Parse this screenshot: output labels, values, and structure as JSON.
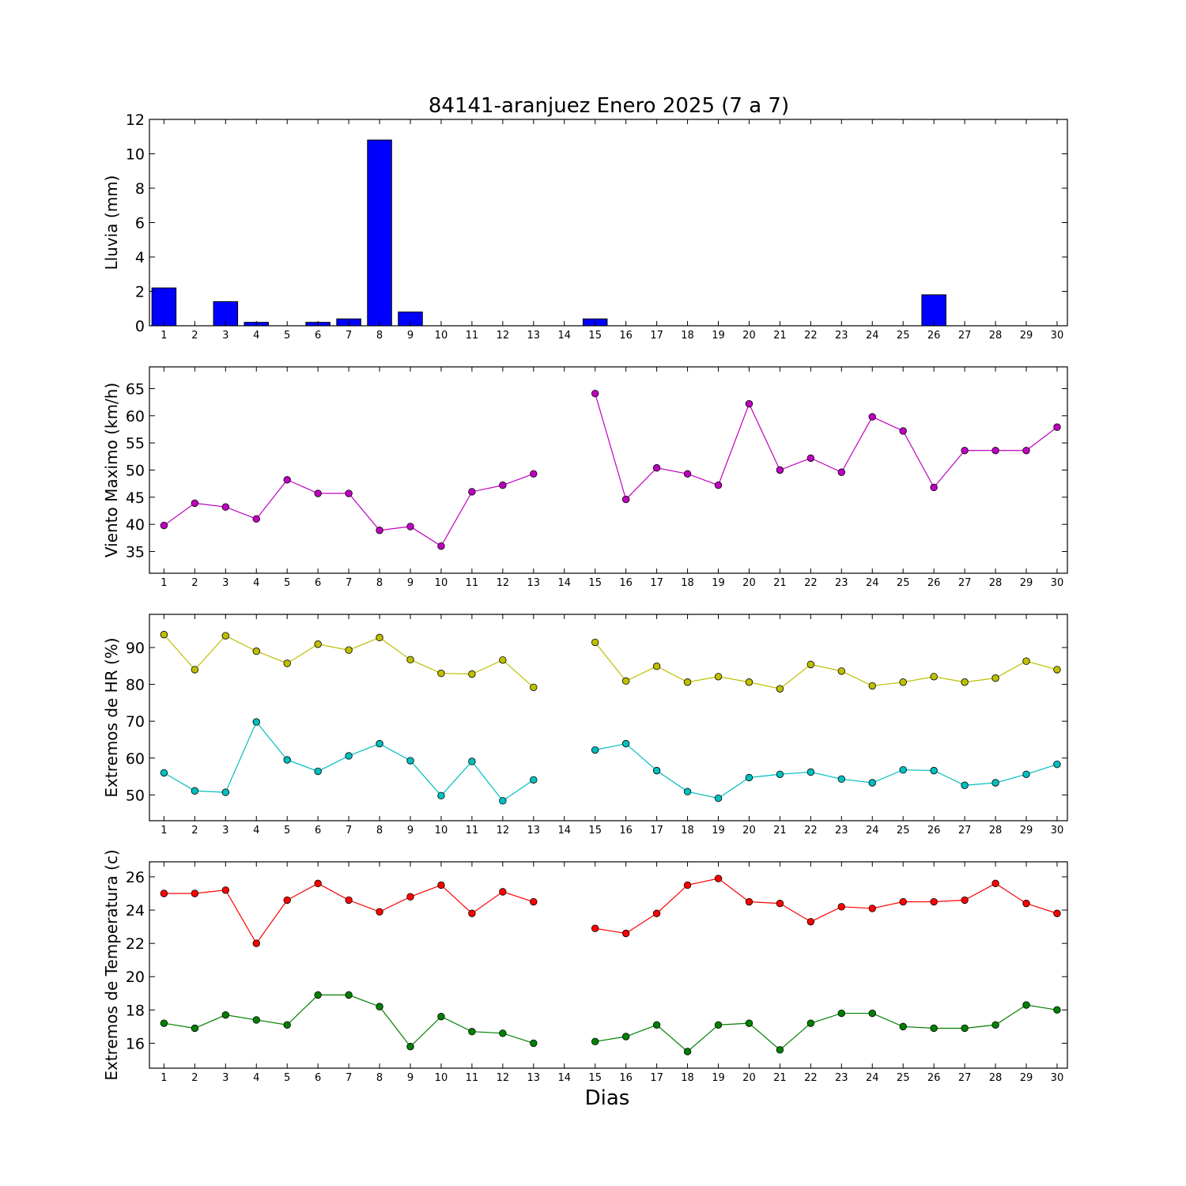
{
  "chart_data": [
    {
      "type": "bar",
      "title": "84141-aranjuez Enero 2025  (7 a 7)",
      "ylabel": "Lluvia (mm)",
      "xlabel": "",
      "ylim": [
        0,
        12
      ],
      "yticks": [
        0,
        2,
        4,
        6,
        8,
        10,
        12
      ],
      "categories": [
        "1",
        "2",
        "3",
        "4",
        "5",
        "6",
        "7",
        "8",
        "9",
        "10",
        "11",
        "12",
        "13",
        "14",
        "15",
        "16",
        "17",
        "18",
        "19",
        "20",
        "21",
        "22",
        "23",
        "24",
        "25",
        "26",
        "27",
        "28",
        "29",
        "30"
      ],
      "series": [
        {
          "color": "#0000ff",
          "values": [
            2.2,
            0,
            1.4,
            0.2,
            0,
            0.2,
            0.4,
            10.8,
            0.8,
            0,
            0,
            0,
            0,
            0,
            0.4,
            0,
            0,
            0,
            0,
            0,
            0,
            0,
            0,
            0,
            0,
            1.8,
            0,
            0,
            0,
            0
          ]
        }
      ]
    },
    {
      "type": "line",
      "title": "",
      "ylabel": "Viento Maximo (km/h)",
      "xlabel": "",
      "ylim": [
        31,
        69
      ],
      "yticks": [
        35,
        40,
        45,
        50,
        55,
        60,
        65
      ],
      "categories": [
        "1",
        "2",
        "3",
        "4",
        "5",
        "6",
        "7",
        "8",
        "9",
        "10",
        "11",
        "12",
        "13",
        "14",
        "15",
        "16",
        "17",
        "18",
        "19",
        "20",
        "21",
        "22",
        "23",
        "24",
        "25",
        "26",
        "27",
        "28",
        "29",
        "30"
      ],
      "series": [
        {
          "color": "#bf00bf",
          "values": [
            39.8,
            43.9,
            43.2,
            41.0,
            48.2,
            45.7,
            45.7,
            38.9,
            39.6,
            36.0,
            46.0,
            47.2,
            49.3,
            null,
            64.1,
            44.6,
            50.4,
            49.3,
            47.2,
            62.2,
            50.0,
            52.2,
            49.6,
            59.8,
            57.2,
            46.8,
            53.6,
            53.6,
            53.6,
            57.9
          ]
        }
      ]
    },
    {
      "type": "line",
      "title": "",
      "ylabel": "Extremos de HR (%)",
      "xlabel": "",
      "ylim": [
        43,
        99
      ],
      "yticks": [
        50,
        60,
        70,
        80,
        90
      ],
      "categories": [
        "1",
        "2",
        "3",
        "4",
        "5",
        "6",
        "7",
        "8",
        "9",
        "10",
        "11",
        "12",
        "13",
        "14",
        "15",
        "16",
        "17",
        "18",
        "19",
        "20",
        "21",
        "22",
        "23",
        "24",
        "25",
        "26",
        "27",
        "28",
        "29",
        "30"
      ],
      "series": [
        {
          "color": "#bfbf00",
          "values": [
            93.5,
            84.0,
            93.2,
            89.0,
            85.7,
            90.9,
            89.3,
            92.7,
            86.7,
            83.0,
            82.8,
            86.6,
            79.2,
            null,
            91.4,
            80.9,
            84.9,
            80.6,
            82.1,
            80.6,
            78.8,
            85.4,
            83.6,
            79.6,
            80.6,
            82.1,
            80.6,
            81.7,
            86.3,
            84.0
          ]
        },
        {
          "color": "#00bfbf",
          "values": [
            56.0,
            51.1,
            50.7,
            69.8,
            59.5,
            56.4,
            60.6,
            63.9,
            59.3,
            49.8,
            59.1,
            48.4,
            54.1,
            null,
            62.2,
            63.9,
            56.6,
            50.9,
            49.1,
            54.7,
            55.6,
            56.2,
            54.3,
            53.3,
            56.8,
            56.6,
            52.6,
            53.3,
            55.6,
            58.3
          ]
        }
      ]
    },
    {
      "type": "line",
      "title": "",
      "ylabel": "Extremos de Temperatura (c)",
      "xlabel": "Dias",
      "ylim": [
        14.5,
        26.9
      ],
      "yticks": [
        16,
        18,
        20,
        22,
        24,
        26
      ],
      "categories": [
        "1",
        "2",
        "3",
        "4",
        "5",
        "6",
        "7",
        "8",
        "9",
        "10",
        "11",
        "12",
        "13",
        "14",
        "15",
        "16",
        "17",
        "18",
        "19",
        "20",
        "21",
        "22",
        "23",
        "24",
        "25",
        "26",
        "27",
        "28",
        "29",
        "30"
      ],
      "series": [
        {
          "color": "#ff0000",
          "values": [
            25.0,
            25.0,
            25.2,
            22.0,
            24.6,
            25.6,
            24.6,
            23.9,
            24.8,
            25.5,
            23.8,
            25.1,
            24.5,
            null,
            22.9,
            22.6,
            23.8,
            25.5,
            25.9,
            24.5,
            24.4,
            23.3,
            24.2,
            24.1,
            24.5,
            24.5,
            24.6,
            25.6,
            24.4,
            23.8
          ]
        },
        {
          "color": "#008000",
          "values": [
            17.2,
            16.9,
            17.7,
            17.4,
            17.1,
            18.9,
            18.9,
            18.2,
            15.8,
            17.6,
            16.7,
            16.6,
            16.0,
            null,
            16.1,
            16.4,
            17.1,
            15.5,
            17.1,
            17.2,
            15.6,
            17.2,
            17.8,
            17.8,
            17.0,
            16.9,
            16.9,
            17.1,
            18.3,
            18.0
          ]
        }
      ]
    }
  ]
}
